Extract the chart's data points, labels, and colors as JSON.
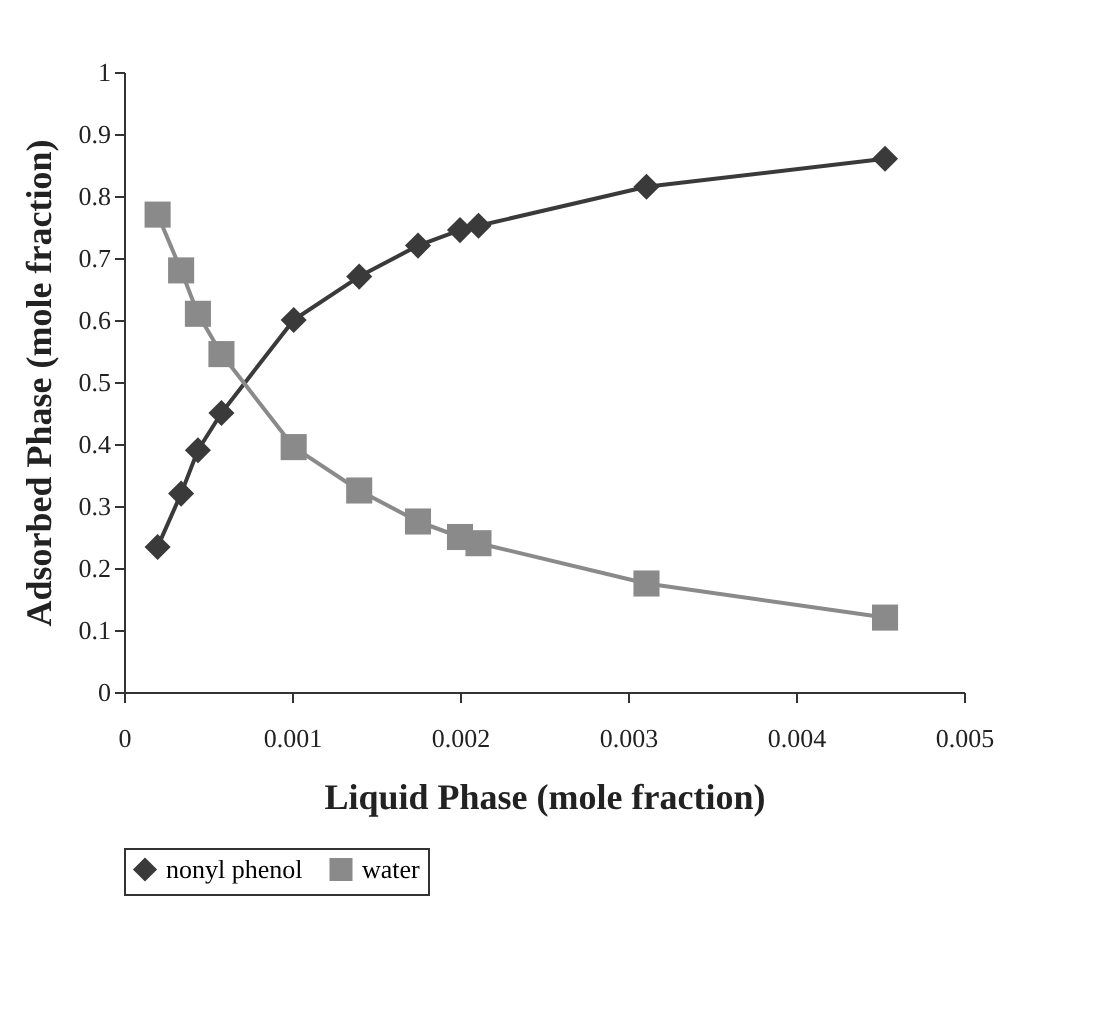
{
  "chart_data": {
    "type": "line",
    "xlabel": "Liquid Phase (mole fraction)",
    "ylabel": "Adsorbed Phase (mole fraction)",
    "xlim": [
      0,
      0.005
    ],
    "xticks": [
      0,
      0.001,
      0.002,
      0.003,
      0.004,
      0.005
    ],
    "ylim": [
      0,
      1
    ],
    "yticks": [
      0,
      0.1,
      0.2,
      0.3,
      0.4,
      0.5,
      0.6,
      0.7,
      0.8,
      0.9,
      1
    ],
    "x": [
      0.0002,
      0.00034,
      0.00044,
      0.00058,
      0.00101,
      0.0014,
      0.00175,
      0.002,
      0.00211,
      0.00311,
      0.00453
    ],
    "series": [
      {
        "name": "nonyl phenol",
        "color": "#3a3a3a",
        "marker": "diamond",
        "values": [
          0.234,
          0.32,
          0.39,
          0.45,
          0.6,
          0.67,
          0.72,
          0.745,
          0.752,
          0.815,
          0.86
        ]
      },
      {
        "name": "water",
        "color": "#8a8a8a",
        "marker": "square",
        "values": [
          0.77,
          0.68,
          0.61,
          0.545,
          0.395,
          0.325,
          0.275,
          0.25,
          0.24,
          0.175,
          0.12
        ]
      }
    ],
    "grid": false,
    "legend": "bottom",
    "line_style": "solid"
  }
}
